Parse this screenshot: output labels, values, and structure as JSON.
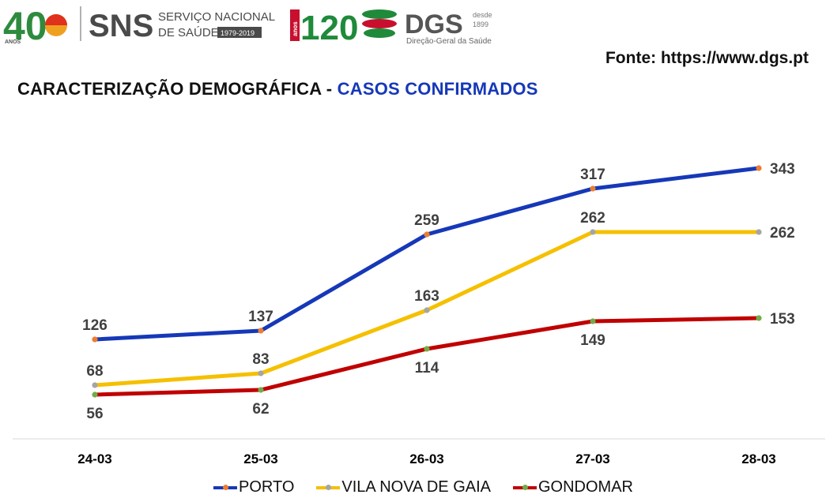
{
  "header": {
    "sns_anniversary": "40",
    "sns_anos": "ANOS",
    "sns_name": "SNS",
    "sns_line1": "SERVIÇO NACIONAL",
    "sns_line2": "DE SAÚDE",
    "sns_years": "1979-2019",
    "dgs_anniversary": "120",
    "dgs_anos": "anos",
    "dgs_name": "DGS",
    "dgs_desde": "desde",
    "dgs_year": "1899",
    "dgs_full": "Direção-Geral da Saúde"
  },
  "source": "Fonte: https://www.dgs.pt",
  "title_prefix": "CARACTERIZAÇÃO DEMOGRÁFICA - ",
  "title_highlight": "CASOS CONFIRMADOS",
  "chart_data": {
    "type": "line",
    "title": "CARACTERIZAÇÃO DEMOGRÁFICA - CASOS CONFIRMADOS",
    "xlabel": "",
    "ylabel": "",
    "ylim": [
      0,
      400
    ],
    "grid": false,
    "legend": "bottom",
    "categories": [
      "24-03",
      "25-03",
      "26-03",
      "27-03",
      "28-03"
    ],
    "series": [
      {
        "name": "PORTO",
        "values": [
          126,
          137,
          259,
          317,
          343
        ],
        "color": "#1638b8",
        "marker": "#ed7d31",
        "label_pos": [
          "above",
          "above",
          "above",
          "above",
          "right"
        ]
      },
      {
        "name": "VILA NOVA DE GAIA",
        "values": [
          68,
          83,
          163,
          262,
          262
        ],
        "color": "#f5c000",
        "marker": "#a5a5a5",
        "label_pos": [
          "above",
          "above",
          "above",
          "above",
          "right"
        ]
      },
      {
        "name": "GONDOMAR",
        "values": [
          56,
          62,
          114,
          149,
          153
        ],
        "color": "#c00000",
        "marker": "#70ad47",
        "label_pos": [
          "below",
          "below",
          "below",
          "below",
          "right"
        ]
      }
    ]
  }
}
